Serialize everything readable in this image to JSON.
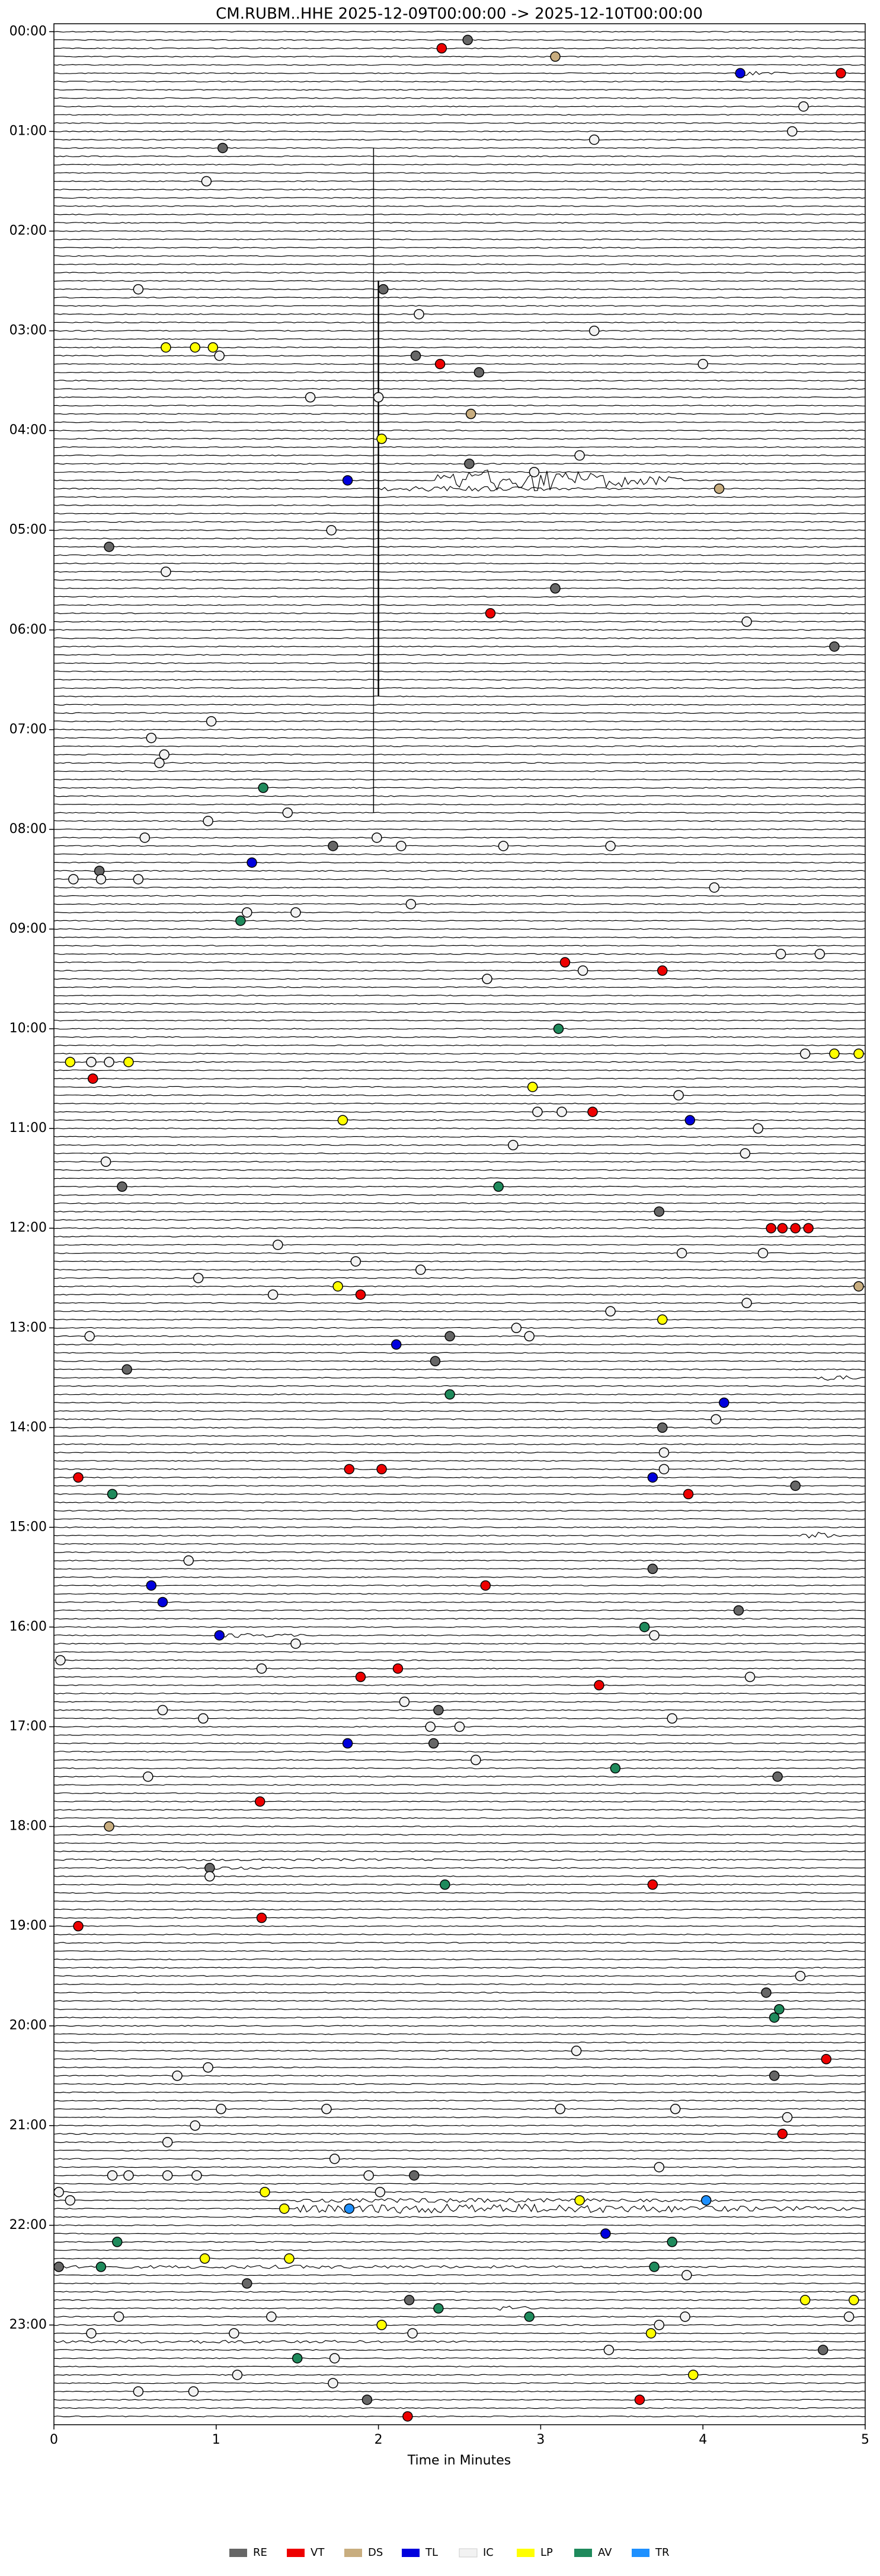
{
  "chart_data": {
    "type": "helicorder",
    "title": "CM.RUBM..HHE  2025-12-09T00:00:00 -> 2025-12-10T00:00:00",
    "xlabel": "Time in Minutes",
    "xlim": [
      0,
      5
    ],
    "xticks": [
      0,
      1,
      2,
      3,
      4,
      5
    ],
    "ylim": [
      -3,
      1440
    ],
    "yticks": [
      {
        "value": 0,
        "label": "00:00"
      },
      {
        "value": 60,
        "label": "01:00"
      },
      {
        "value": 120,
        "label": "02:00"
      },
      {
        "value": 180,
        "label": "03:00"
      },
      {
        "value": 240,
        "label": "04:00"
      },
      {
        "value": 300,
        "label": "05:00"
      },
      {
        "value": 360,
        "label": "06:00"
      },
      {
        "value": 420,
        "label": "07:00"
      },
      {
        "value": 480,
        "label": "08:00"
      },
      {
        "value": 540,
        "label": "09:00"
      },
      {
        "value": 600,
        "label": "10:00"
      },
      {
        "value": 660,
        "label": "11:00"
      },
      {
        "value": 720,
        "label": "12:00"
      },
      {
        "value": 780,
        "label": "13:00"
      },
      {
        "value": 840,
        "label": "14:00"
      },
      {
        "value": 900,
        "label": "15:00"
      },
      {
        "value": 960,
        "label": "16:00"
      },
      {
        "value": 1020,
        "label": "17:00"
      },
      {
        "value": 1080,
        "label": "18:00"
      },
      {
        "value": 1140,
        "label": "19:00"
      },
      {
        "value": 1200,
        "label": "20:00"
      },
      {
        "value": 1260,
        "label": "21:00"
      },
      {
        "value": 1320,
        "label": "22:00"
      },
      {
        "value": 1380,
        "label": "23:00"
      }
    ],
    "legend": "bottom",
    "series": [
      {
        "name": "RE",
        "color": "#666666",
        "x": [
          2.55,
          1.04,
          2.03,
          2.23,
          2.62,
          2.56,
          0.34,
          3.09,
          4.81,
          1.72,
          0.28,
          0.42,
          3.73,
          2.44,
          2.35,
          0.45,
          3.75,
          4.57,
          3.69,
          4.22,
          2.37,
          2.34,
          4.46,
          0.96,
          4.39,
          4.44,
          2.22,
          0.03,
          1.19,
          2.19,
          4.74,
          1.93
        ],
        "values": [
          5,
          70,
          155,
          195,
          205,
          260,
          310,
          335,
          370,
          490,
          505,
          695,
          710,
          785,
          800,
          805,
          840,
          875,
          925,
          950,
          1010,
          1030,
          1050,
          1105,
          1180,
          1230,
          1290,
          1345,
          1355,
          1365,
          1395,
          1425
        ]
      },
      {
        "name": "VT",
        "color": "#ee0000",
        "x": [
          2.39,
          4.85,
          2.38,
          2.69,
          3.15,
          3.75,
          0.24,
          3.32,
          4.42,
          4.49,
          4.57,
          4.65,
          1.89,
          1.82,
          2.02,
          0.15,
          3.91,
          2.66,
          2.12,
          1.89,
          3.36,
          1.27,
          3.69,
          1.28,
          0.15,
          4.76,
          4.49,
          3.61,
          2.18
        ],
        "values": [
          10,
          25,
          200,
          350,
          560,
          565,
          630,
          650,
          720,
          720,
          720,
          720,
          760,
          865,
          865,
          870,
          880,
          935,
          985,
          990,
          995,
          1065,
          1115,
          1135,
          1140,
          1220,
          1265,
          1425,
          1435
        ]
      },
      {
        "name": "DS",
        "color": "#c8ad7f",
        "x": [
          3.09,
          2.57,
          4.1,
          4.96,
          0.34
        ],
        "values": [
          15,
          230,
          275,
          755,
          1080
        ]
      },
      {
        "name": "TL",
        "color": "#0000dd",
        "x": [
          4.23,
          1.81,
          1.22,
          3.92,
          2.11,
          4.13,
          3.69,
          0.6,
          0.67,
          1.02,
          1.81,
          3.4
        ],
        "values": [
          25,
          270,
          500,
          655,
          790,
          825,
          870,
          935,
          945,
          965,
          1030,
          1325
        ]
      },
      {
        "name": "IC",
        "color": "#f2f2f2",
        "x": [
          4.62,
          4.55,
          3.33,
          0.94,
          0.52,
          2.25,
          3.33,
          1.02,
          4.0,
          1.58,
          2.0,
          3.24,
          2.96,
          1.71,
          0.69,
          4.27,
          0.97,
          0.6,
          0.68,
          0.65,
          1.44,
          0.95,
          0.56,
          1.99,
          2.14,
          2.77,
          3.43,
          0.12,
          0.29,
          0.52,
          4.07,
          2.2,
          1.19,
          1.49,
          4.48,
          4.72,
          3.26,
          2.67,
          4.63,
          0.23,
          0.34,
          3.85,
          2.98,
          3.13,
          4.34,
          2.83,
          4.26,
          0.32,
          1.38,
          3.87,
          4.37,
          1.86,
          2.26,
          0.89,
          1.35,
          4.27,
          3.43,
          2.85,
          0.22,
          2.93,
          4.08,
          3.76,
          3.76,
          0.83,
          3.7,
          1.49,
          0.04,
          1.28,
          4.29,
          2.16,
          0.67,
          3.81,
          0.92,
          2.32,
          2.5,
          2.6,
          0.58,
          0.96,
          4.6,
          3.22,
          0.95,
          0.76,
          1.03,
          1.68,
          3.12,
          3.83,
          4.52,
          0.87,
          0.7,
          1.73,
          3.73,
          0.36,
          0.46,
          0.7,
          0.88,
          1.94,
          0.03,
          2.01,
          0.1,
          3.9,
          0.4,
          1.34,
          3.89,
          4.9,
          3.73,
          0.23,
          1.11,
          2.21,
          3.42,
          1.73,
          1.13,
          1.72,
          0.52,
          0.86
        ],
        "values": [
          45,
          60,
          65,
          90,
          155,
          170,
          180,
          195,
          200,
          220,
          220,
          255,
          265,
          300,
          325,
          355,
          415,
          425,
          435,
          440,
          470,
          475,
          485,
          485,
          490,
          490,
          490,
          510,
          510,
          510,
          515,
          525,
          530,
          530,
          555,
          555,
          565,
          570,
          615,
          620,
          620,
          640,
          650,
          650,
          660,
          670,
          675,
          680,
          730,
          735,
          735,
          740,
          745,
          750,
          760,
          765,
          770,
          780,
          785,
          785,
          835,
          855,
          865,
          920,
          965,
          970,
          980,
          985,
          990,
          1005,
          1010,
          1015,
          1015,
          1020,
          1020,
          1040,
          1050,
          1110,
          1170,
          1215,
          1225,
          1230,
          1250,
          1250,
          1250,
          1250,
          1255,
          1260,
          1270,
          1280,
          1285,
          1290,
          1290,
          1290,
          1290,
          1290,
          1300,
          1300,
          1305,
          1350,
          1375,
          1375,
          1375,
          1375,
          1380,
          1385,
          1385,
          1385,
          1395,
          1400,
          1410,
          1415,
          1420,
          1420
        ]
      },
      {
        "name": "LP",
        "color": "#ffff00",
        "x": [
          0.69,
          0.87,
          0.98,
          2.02,
          4.81,
          4.96,
          0.1,
          0.46,
          2.95,
          1.78,
          1.75,
          3.75,
          1.3,
          1.42,
          3.24,
          0.93,
          1.45,
          4.63,
          4.93,
          2.02,
          3.68,
          3.94
        ],
        "values": [
          190,
          190,
          190,
          245,
          615,
          615,
          620,
          620,
          635,
          655,
          755,
          775,
          1300,
          1310,
          1305,
          1340,
          1340,
          1365,
          1365,
          1380,
          1385,
          1410
        ]
      },
      {
        "name": "AV",
        "color": "#1f8a5c",
        "x": [
          1.29,
          1.15,
          3.11,
          2.74,
          2.44,
          0.36,
          3.64,
          3.46,
          2.41,
          4.47,
          4.44,
          0.39,
          3.81,
          0.29,
          3.7,
          2.37,
          2.93,
          1.5
        ],
        "values": [
          455,
          535,
          600,
          695,
          820,
          880,
          960,
          1045,
          1115,
          1190,
          1195,
          1330,
          1330,
          1345,
          1345,
          1370,
          1375,
          1400
        ]
      },
      {
        "name": "TR",
        "color": "#1e90ff",
        "x": [
          1.82,
          4.02
        ],
        "values": [
          1310,
          1305
        ]
      }
    ]
  }
}
